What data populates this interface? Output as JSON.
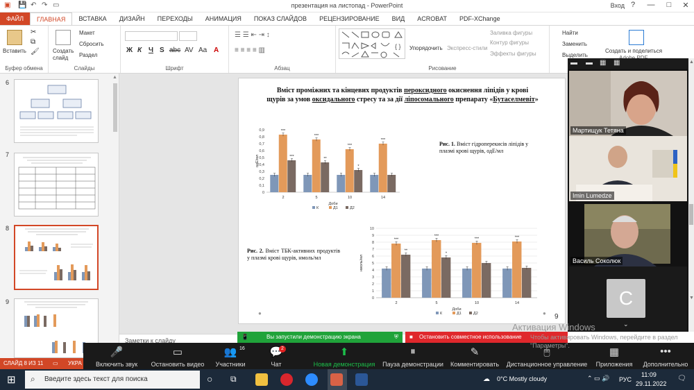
{
  "window": {
    "title": "презентация на листопад - PowerPoint",
    "signin": "Вход",
    "controls": [
      "?",
      "—",
      "□",
      "✕"
    ]
  },
  "tabs": [
    "ФАЙЛ",
    "ГЛАВНАЯ",
    "ВСТАВКА",
    "ДИЗАЙН",
    "ПЕРЕХОДЫ",
    "АНИМАЦИЯ",
    "ПОКАЗ СЛАЙДОВ",
    "РЕЦЕНЗИРОВАНИЕ",
    "ВИД",
    "ACROBAT",
    "PDF-XChange"
  ],
  "ribbon": {
    "clipboard": {
      "paste": "Вставить",
      "label": "Буфер обмена"
    },
    "slides": {
      "new_slide": "Создать слайд",
      "layout": "Макет",
      "reset": "Сбросить",
      "section": "Раздел",
      "label": "Слайды"
    },
    "font": {
      "label": "Шрифт",
      "buttons": [
        "Ж",
        "К",
        "Ч",
        "S",
        "abc",
        "AV",
        "Aa",
        "A"
      ]
    },
    "paragraph": {
      "label": "Абзац"
    },
    "drawing": {
      "arrange": "Упорядочить",
      "quick_styles": "Экспресс-стили",
      "fill": "Заливка фигуры",
      "outline": "Контур фигуры",
      "effects": "Эффекты фигуры",
      "label": "Рисование"
    },
    "editing": {
      "find": "Найти",
      "replace": "Заменить",
      "select": "Выделить",
      "label": "Реда"
    },
    "share": {
      "create_share": "Создать и поделиться",
      "pdf": "Adobe PDF"
    }
  },
  "slides_panel": {
    "items": [
      {
        "number": "6",
        "selected": false
      },
      {
        "number": "7",
        "selected": false
      },
      {
        "number": "8",
        "selected": true
      },
      {
        "number": "9",
        "selected": false
      }
    ]
  },
  "slide": {
    "title_parts": [
      "Вміст проміжних та кінцевих продуктів ",
      "пероксидного",
      " окиснення ліпідів у крові щурів за умов ",
      "оксидального",
      " стресу та за дії ",
      "ліпосомального",
      " препарату «",
      "Бутаселмевіт",
      "»"
    ],
    "caption1_bold": "Рис. 1.",
    "caption1_text": " Вміст гідроперекисів ліпідів у плазмі крові щурів, одЕ/мл",
    "caption2_bold": "Рис. 2.",
    "caption2_text": " Вміст ТБК-активних продуктів у плазмі крові щурів, нмоль/мл",
    "number": "9"
  },
  "chart_data": [
    {
      "type": "bar",
      "title": "",
      "xlabel": "Доби",
      "ylabel": "одЕ/мл",
      "categories": [
        "2",
        "5",
        "10",
        "14"
      ],
      "ylim": [
        0,
        0.9
      ],
      "yticks": [
        "0",
        "0,1",
        "0,2",
        "0,3",
        "0,4",
        "0,5",
        "0,6",
        "0,7",
        "0,8",
        "0,9"
      ],
      "series": [
        {
          "name": "К",
          "color": "#7f97b8",
          "values": [
            0.25,
            0.25,
            0.25,
            0.25
          ],
          "labels": [
            "",
            "",
            "",
            ""
          ]
        },
        {
          "name": "Д1",
          "color": "#e39a5a",
          "values": [
            0.83,
            0.76,
            0.62,
            0.7
          ],
          "labels": [
            "***",
            "***",
            "***",
            "***"
          ]
        },
        {
          "name": "Д2",
          "color": "#7a6a62",
          "values": [
            0.46,
            0.43,
            0.32,
            0.25
          ],
          "labels": [
            "***",
            "**",
            "*",
            ""
          ]
        }
      ],
      "legend_position": "bottom",
      "grid": false
    },
    {
      "type": "bar",
      "title": "",
      "xlabel": "Доби",
      "ylabel": "нмоль/мл",
      "categories": [
        "2",
        "5",
        "10",
        "14"
      ],
      "ylim": [
        0,
        10
      ],
      "yticks": [
        "0",
        "1",
        "2",
        "3",
        "4",
        "5",
        "6",
        "7",
        "8",
        "9",
        "10"
      ],
      "series": [
        {
          "name": "К",
          "color": "#7f97b8",
          "values": [
            4.2,
            4.2,
            4.2,
            4.2
          ],
          "labels": [
            "",
            "",
            "",
            ""
          ]
        },
        {
          "name": "Д1",
          "color": "#e39a5a",
          "values": [
            7.8,
            8.3,
            7.9,
            8.1
          ],
          "labels": [
            "***",
            "***",
            "***",
            "***"
          ]
        },
        {
          "name": "Д2",
          "color": "#7a6a62",
          "values": [
            6.2,
            5.8,
            5.0,
            4.3
          ],
          "labels": [
            "**",
            "*",
            "",
            ""
          ]
        }
      ],
      "legend_position": "bottom",
      "grid": true
    }
  ],
  "notes": {
    "placeholder": "Заметки к слайду"
  },
  "status": {
    "slide_info": "СЛАЙД 8 ИЗ 11",
    "language": "УКРА"
  },
  "share_banner": {
    "started": "Вы запустили демонстрацию экрана",
    "stop": "Остановить совместное использование"
  },
  "zoom_toolbar": {
    "buttons": [
      {
        "label": "Включить звук",
        "icon": "mic-off-icon",
        "glyph": "🎤"
      },
      {
        "label": "Остановить видео",
        "icon": "video-icon",
        "glyph": "▭"
      },
      {
        "label": "Участники",
        "icon": "participants-icon",
        "glyph": "👥",
        "badge": "16"
      },
      {
        "label": "Чат",
        "icon": "chat-icon",
        "glyph": "💬",
        "badge": "2"
      },
      {
        "label": "Новая демонстрация",
        "icon": "share-icon",
        "glyph": "⬆"
      },
      {
        "label": "Пауза демонстрации",
        "icon": "pause-icon",
        "glyph": "⏸"
      },
      {
        "label": "Комментировать",
        "icon": "annotate-icon",
        "glyph": "✎"
      },
      {
        "label": "Дистанционное управление",
        "icon": "remote-control-icon",
        "glyph": "🖱"
      },
      {
        "label": "Приложения",
        "icon": "apps-icon",
        "glyph": "▦"
      },
      {
        "label": "Дополнительно",
        "icon": "more-icon",
        "glyph": "•••"
      }
    ]
  },
  "participants": [
    {
      "name": "Мартищук Тетяна"
    },
    {
      "name": "Imin Lumedze"
    },
    {
      "name": "Василь Соколюк"
    },
    {
      "name": "",
      "initial": "С"
    }
  ],
  "activation": {
    "title": "Активация Windows",
    "text": "Чтобы активировать Windows, перейдите в раздел \"Параметры\"."
  },
  "taskbar": {
    "search_placeholder": "Введите здесь текст для поиска",
    "weather": "0°C  Mostly cloudy",
    "lang": "РУС",
    "time": "11:09",
    "date": "29.11.2022"
  }
}
